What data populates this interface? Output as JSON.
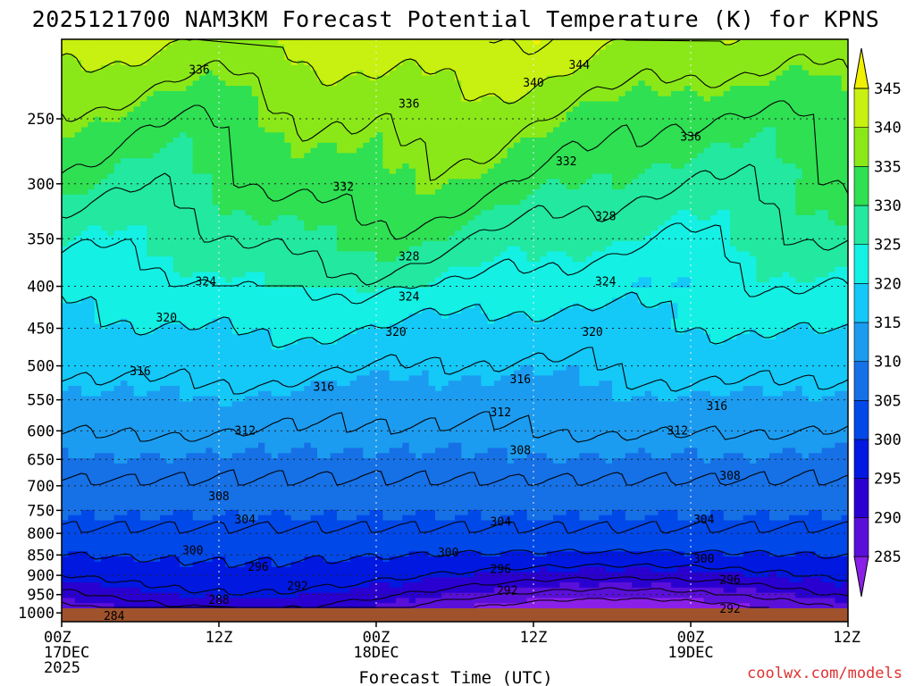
{
  "chart_data": {
    "type": "heatmap",
    "title": "2025121700 NAM3KM Forecast Potential Temperature (K) for KPNS",
    "xlabel": "Forecast Time (UTC)",
    "ylabel": "",
    "credit": "coolwx.com/models",
    "x_hours_range": [
      0,
      60
    ],
    "x_ticks": [
      {
        "hour": 0,
        "line1": "00Z",
        "line2": "17DEC",
        "line3": "2025"
      },
      {
        "hour": 12,
        "line1": "12Z",
        "line2": "",
        "line3": ""
      },
      {
        "hour": 24,
        "line1": "00Z",
        "line2": "18DEC",
        "line3": ""
      },
      {
        "hour": 36,
        "line1": "12Z",
        "line2": "",
        "line3": ""
      },
      {
        "hour": 48,
        "line1": "00Z",
        "line2": "19DEC",
        "line3": ""
      },
      {
        "hour": 60,
        "line1": "12Z",
        "line2": "",
        "line3": ""
      }
    ],
    "y_axis": {
      "type": "log-pressure",
      "range_hpa": [
        1025,
        200
      ],
      "ticks": [
        250,
        300,
        350,
        400,
        450,
        500,
        550,
        600,
        650,
        700,
        750,
        800,
        850,
        900,
        950,
        1000
      ]
    },
    "colorbar": {
      "levels": [
        285,
        290,
        295,
        300,
        305,
        310,
        315,
        320,
        325,
        330,
        335,
        340,
        345
      ],
      "labels": [
        "285",
        "290",
        "295",
        "300",
        "305",
        "310",
        "315",
        "320",
        "325",
        "330",
        "335",
        "340",
        "345"
      ],
      "colors": [
        "#8a20e8",
        "#5a10d8",
        "#2a00d0",
        "#0018e0",
        "#0048e8",
        "#1670e6",
        "#1c9cf0",
        "#14c8f8",
        "#14f0e4",
        "#22e8a0",
        "#2ee052",
        "#8ae818",
        "#c8f010",
        "#f0f000"
      ]
    },
    "ground_color": "#a0522d",
    "contour_interval_K": 4,
    "theta_profile": [
      {
        "p": 1000,
        "theta": 284.5
      },
      {
        "p": 950,
        "theta": 291
      },
      {
        "p": 900,
        "theta": 296
      },
      {
        "p": 850,
        "theta": 300
      },
      {
        "p": 800,
        "theta": 303.5
      },
      {
        "p": 750,
        "theta": 305.5
      },
      {
        "p": 700,
        "theta": 307.5
      },
      {
        "p": 650,
        "theta": 309.5
      },
      {
        "p": 600,
        "theta": 312
      },
      {
        "p": 550,
        "theta": 314
      },
      {
        "p": 500,
        "theta": 316.5
      },
      {
        "p": 450,
        "theta": 319.5
      },
      {
        "p": 400,
        "theta": 323
      },
      {
        "p": 350,
        "theta": 327
      },
      {
        "p": 300,
        "theta": 331
      },
      {
        "p": 250,
        "theta": 334.5
      },
      {
        "p": 200,
        "theta": 341
      }
    ],
    "contour_labels": [
      {
        "value": "336",
        "hour": 10.5,
        "p": 218
      },
      {
        "value": "344",
        "hour": 39.5,
        "p": 215
      },
      {
        "value": "340",
        "hour": 36,
        "p": 226
      },
      {
        "value": "336",
        "hour": 26.5,
        "p": 240
      },
      {
        "value": "336",
        "hour": 48,
        "p": 263
      },
      {
        "value": "332",
        "hour": 38.5,
        "p": 282
      },
      {
        "value": "332",
        "hour": 21.5,
        "p": 303
      },
      {
        "value": "328",
        "hour": 41.5,
        "p": 329
      },
      {
        "value": "328",
        "hour": 26.5,
        "p": 368
      },
      {
        "value": "324",
        "hour": 11,
        "p": 395
      },
      {
        "value": "324",
        "hour": 26.5,
        "p": 412
      },
      {
        "value": "324",
        "hour": 41.5,
        "p": 395
      },
      {
        "value": "320",
        "hour": 8,
        "p": 437
      },
      {
        "value": "320",
        "hour": 25.5,
        "p": 455
      },
      {
        "value": "320",
        "hour": 40.5,
        "p": 455
      },
      {
        "value": "316",
        "hour": 6,
        "p": 508
      },
      {
        "value": "316",
        "hour": 20,
        "p": 531
      },
      {
        "value": "316",
        "hour": 35,
        "p": 520
      },
      {
        "value": "316",
        "hour": 50,
        "p": 560
      },
      {
        "value": "312",
        "hour": 14,
        "p": 600
      },
      {
        "value": "312",
        "hour": 33.5,
        "p": 570
      },
      {
        "value": "312",
        "hour": 47,
        "p": 600
      },
      {
        "value": "308",
        "hour": 35,
        "p": 634
      },
      {
        "value": "308",
        "hour": 51,
        "p": 681
      },
      {
        "value": "308",
        "hour": 12,
        "p": 722
      },
      {
        "value": "304",
        "hour": 14,
        "p": 770
      },
      {
        "value": "304",
        "hour": 33.5,
        "p": 775
      },
      {
        "value": "304",
        "hour": 49,
        "p": 770
      },
      {
        "value": "300",
        "hour": 10,
        "p": 840
      },
      {
        "value": "300",
        "hour": 29.5,
        "p": 845
      },
      {
        "value": "300",
        "hour": 49,
        "p": 860
      },
      {
        "value": "296",
        "hour": 15,
        "p": 880
      },
      {
        "value": "296",
        "hour": 33.5,
        "p": 885
      },
      {
        "value": "296",
        "hour": 51,
        "p": 912
      },
      {
        "value": "292",
        "hour": 18,
        "p": 928
      },
      {
        "value": "292",
        "hour": 34,
        "p": 940
      },
      {
        "value": "292",
        "hour": 51,
        "p": 990
      },
      {
        "value": "288",
        "hour": 12,
        "p": 965
      },
      {
        "value": "284",
        "hour": 4,
        "p": 1010
      }
    ]
  }
}
